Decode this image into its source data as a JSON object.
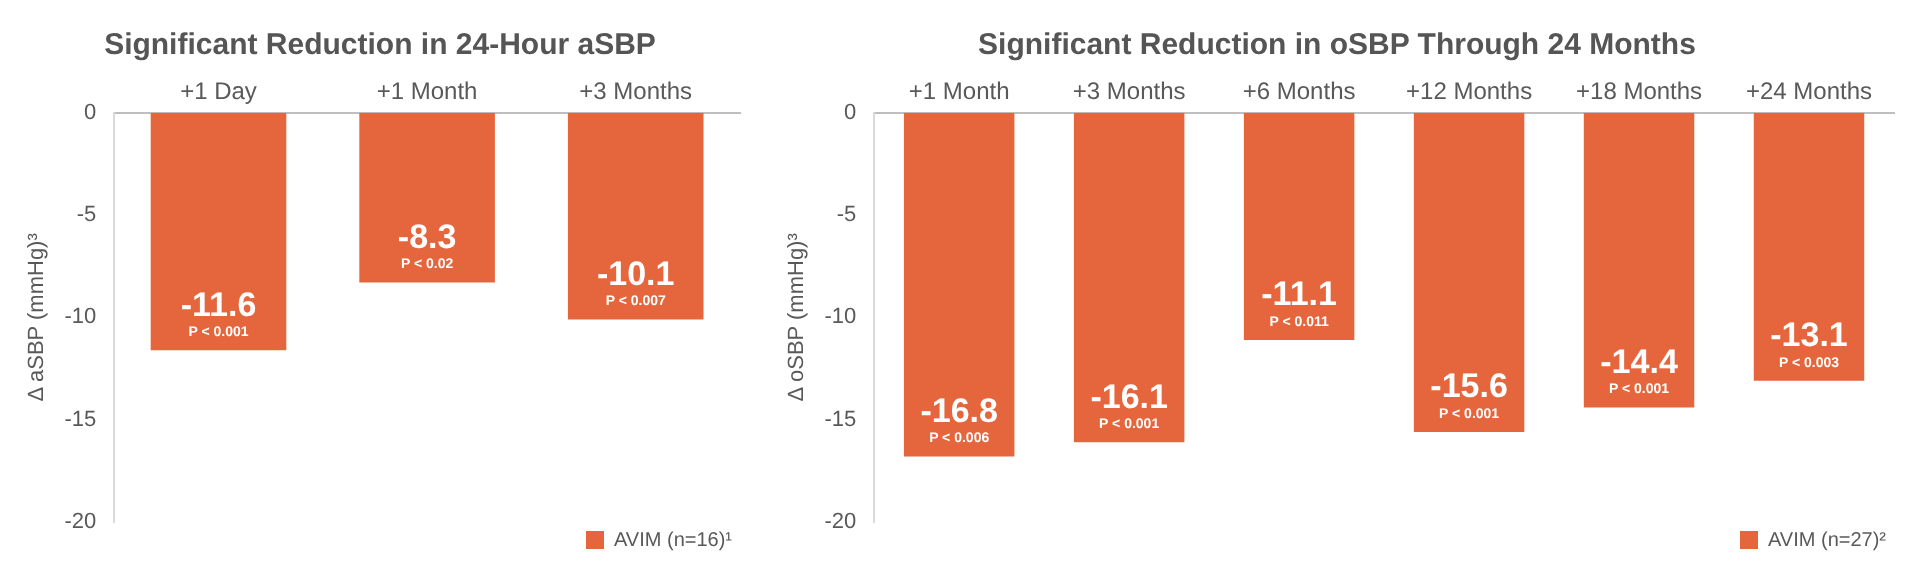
{
  "chart_data": [
    {
      "type": "bar",
      "title": "Significant Reduction in 24-Hour aSBP",
      "ylabel": "Δ aSBP (mmHg)³",
      "categories": [
        "+1 Day",
        "+1 Month",
        "+3 Months"
      ],
      "series": [
        {
          "name": "AVIM (n=16)¹",
          "color": "#e5663c",
          "values": [
            -11.6,
            -8.3,
            -10.1
          ]
        }
      ],
      "ylim": [
        -20,
        0
      ],
      "yticks": [
        -20,
        -15,
        -10,
        -5,
        0
      ],
      "grid": false,
      "legend": "bottom right",
      "data_labels": true,
      "annotations": [
        {
          "text": "P < 0.001",
          "x": "+1 Day",
          "y": -11.6
        },
        {
          "text": "P < 0.02",
          "x": "+1 Month",
          "y": -8.3
        },
        {
          "text": "P < 0.007",
          "x": "+3 Months",
          "y": -10.1
        }
      ]
    },
    {
      "type": "bar",
      "title": "Significant Reduction in oSBP Through 24 Months",
      "ylabel": "Δ oSBP (mmHg)³",
      "categories": [
        "+1 Month",
        "+3 Months",
        "+6 Months",
        "+12 Months",
        "+18 Months",
        "+24 Months"
      ],
      "series": [
        {
          "name": "AVIM (n=27)²",
          "color": "#e5663c",
          "values": [
            -16.8,
            -16.1,
            -11.1,
            -15.6,
            -14.4,
            -13.1
          ]
        }
      ],
      "ylim": [
        -20,
        0
      ],
      "yticks": [
        -20,
        -15,
        -10,
        -5,
        0
      ],
      "grid": false,
      "legend": "bottom right",
      "data_labels": true,
      "annotations": [
        {
          "text": "P < 0.006",
          "x": "+1 Month",
          "y": -16.8
        },
        {
          "text": "P < 0.001",
          "x": "+3 Months",
          "y": -16.1
        },
        {
          "text": "P < 0.011",
          "x": "+6 Months",
          "y": -11.1
        },
        {
          "text": "P < 0.001",
          "x": "+12 Months",
          "y": -15.6
        },
        {
          "text": "P < 0.001",
          "x": "+18 Months",
          "y": -14.4
        },
        {
          "text": "P < 0.003",
          "x": "+24 Months",
          "y": -13.1
        }
      ]
    }
  ]
}
